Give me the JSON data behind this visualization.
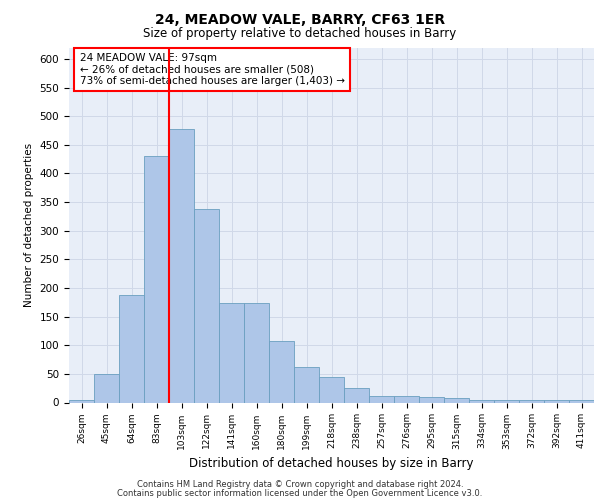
{
  "title1": "24, MEADOW VALE, BARRY, CF63 1ER",
  "title2": "Size of property relative to detached houses in Barry",
  "xlabel": "Distribution of detached houses by size in Barry",
  "ylabel": "Number of detached properties",
  "bar_labels": [
    "26sqm",
    "45sqm",
    "64sqm",
    "83sqm",
    "103sqm",
    "122sqm",
    "141sqm",
    "160sqm",
    "180sqm",
    "199sqm",
    "218sqm",
    "238sqm",
    "257sqm",
    "276sqm",
    "295sqm",
    "315sqm",
    "334sqm",
    "353sqm",
    "372sqm",
    "392sqm",
    "411sqm"
  ],
  "bar_values": [
    5,
    50,
    188,
    430,
    477,
    338,
    174,
    174,
    107,
    62,
    45,
    25,
    12,
    12,
    9,
    7,
    4,
    4,
    4,
    4,
    4
  ],
  "bar_color": "#aec6e8",
  "bar_edge_color": "#6a9fc0",
  "vline_index": 3.5,
  "vline_color": "red",
  "annotation_line1": "24 MEADOW VALE: 97sqm",
  "annotation_line2": "← 26% of detached houses are smaller (508)",
  "annotation_line3": "73% of semi-detached houses are larger (1,403) →",
  "annotation_box_color": "white",
  "annotation_box_edge": "red",
  "grid_color": "#d0d8e8",
  "background_color": "#e8eef8",
  "ylim": [
    0,
    620
  ],
  "yticks": [
    0,
    50,
    100,
    150,
    200,
    250,
    300,
    350,
    400,
    450,
    500,
    550,
    600
  ],
  "footer1": "Contains HM Land Registry data © Crown copyright and database right 2024.",
  "footer2": "Contains public sector information licensed under the Open Government Licence v3.0."
}
